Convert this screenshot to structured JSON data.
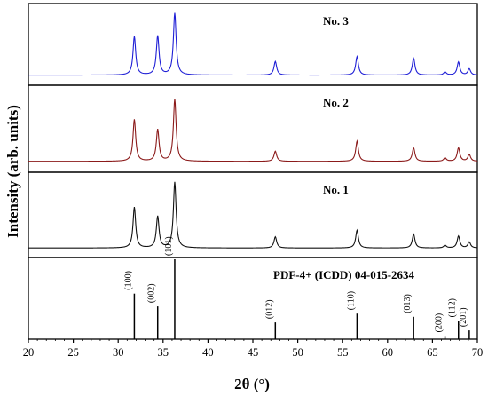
{
  "chart_data": {
    "type": "line",
    "layout": "stacked panels with shared x axis",
    "xlabel": "2θ (°)",
    "ylabel": "Intensity (arb. units)",
    "xlim": [
      20,
      70
    ],
    "xticks": [
      "20",
      "25",
      "30",
      "35",
      "40",
      "45",
      "50",
      "55",
      "60",
      "65",
      "70"
    ],
    "grid": false,
    "series": [
      {
        "name": "No. 3",
        "color": "#1f1fd6",
        "baseline": 0.02,
        "peaks": [
          {
            "x": 31.8,
            "y": 0.62
          },
          {
            "x": 34.4,
            "y": 0.63
          },
          {
            "x": 36.3,
            "y": 1.0
          },
          {
            "x": 47.5,
            "y": 0.22
          },
          {
            "x": 56.6,
            "y": 0.3
          },
          {
            "x": 62.9,
            "y": 0.27
          },
          {
            "x": 66.4,
            "y": 0.05
          },
          {
            "x": 67.9,
            "y": 0.21
          },
          {
            "x": 69.1,
            "y": 0.1
          }
        ]
      },
      {
        "name": "No. 2",
        "color": "#8b1a1a",
        "baseline": 0.03,
        "peaks": [
          {
            "x": 31.8,
            "y": 0.62
          },
          {
            "x": 34.4,
            "y": 0.47
          },
          {
            "x": 36.3,
            "y": 0.92
          },
          {
            "x": 47.5,
            "y": 0.15
          },
          {
            "x": 56.6,
            "y": 0.3
          },
          {
            "x": 62.9,
            "y": 0.2
          },
          {
            "x": 66.4,
            "y": 0.05
          },
          {
            "x": 67.9,
            "y": 0.2
          },
          {
            "x": 69.1,
            "y": 0.1
          }
        ]
      },
      {
        "name": "No. 1",
        "color": "#111111",
        "baseline": 0.01,
        "peaks": [
          {
            "x": 31.8,
            "y": 0.62
          },
          {
            "x": 34.4,
            "y": 0.48
          },
          {
            "x": 36.3,
            "y": 1.0
          },
          {
            "x": 47.5,
            "y": 0.17
          },
          {
            "x": 56.6,
            "y": 0.27
          },
          {
            "x": 62.9,
            "y": 0.21
          },
          {
            "x": 66.4,
            "y": 0.04
          },
          {
            "x": 67.9,
            "y": 0.18
          },
          {
            "x": 69.1,
            "y": 0.09
          }
        ]
      }
    ],
    "reference": {
      "name": "PDF-4+ (ICDD) 04-015-2634",
      "lines": [
        {
          "x": 31.8,
          "y": 0.57,
          "hkl": "(100)"
        },
        {
          "x": 34.4,
          "y": 0.41,
          "hkl": "(002)"
        },
        {
          "x": 36.3,
          "y": 1.0,
          "hkl": "(101)"
        },
        {
          "x": 47.5,
          "y": 0.21,
          "hkl": "(012)"
        },
        {
          "x": 56.6,
          "y": 0.32,
          "hkl": "(110)"
        },
        {
          "x": 62.9,
          "y": 0.28,
          "hkl": "(013)"
        },
        {
          "x": 66.4,
          "y": 0.04,
          "hkl": "(200)"
        },
        {
          "x": 67.9,
          "y": 0.23,
          "hkl": "(112)"
        },
        {
          "x": 69.1,
          "y": 0.11,
          "hkl": "(201)"
        }
      ]
    }
  }
}
